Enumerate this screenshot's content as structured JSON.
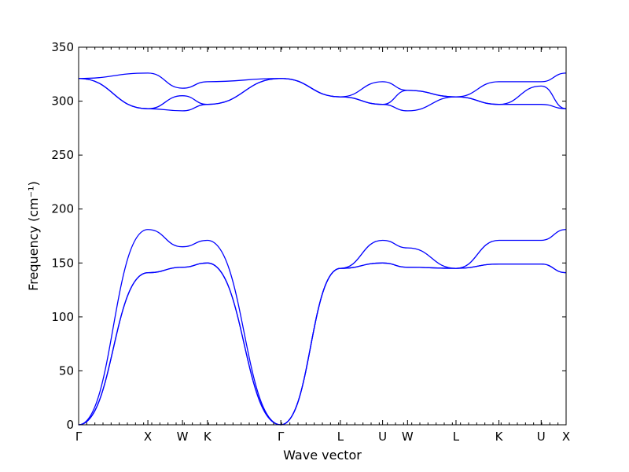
{
  "chart_data": {
    "type": "line",
    "title": "",
    "xlabel": "Wave vector",
    "ylabel": "Frequency (cm⁻¹)",
    "ylim": [
      0,
      350
    ],
    "yticks": [
      0,
      50,
      100,
      150,
      200,
      250,
      300,
      350
    ],
    "grid": false,
    "legend": "none",
    "line_color": "#0000ff",
    "x": [
      0,
      1,
      1.5,
      1.86,
      2.92,
      3.78,
      4.39,
      4.75,
      5.45,
      6.07,
      6.68,
      7.04
    ],
    "xticks": [
      "Γ",
      "X",
      "W",
      "K",
      "Γ",
      "L",
      "U",
      "W",
      "L",
      "K",
      "U",
      "X"
    ],
    "series": [
      {
        "values": [
          0,
          141,
          146,
          150,
          0,
          145,
          150,
          146,
          145,
          149,
          149,
          141
        ]
      },
      {
        "values": [
          0,
          141,
          146,
          150,
          0,
          145,
          150,
          146,
          145,
          149,
          149,
          141
        ]
      },
      {
        "values": [
          0,
          181,
          165,
          171,
          0,
          145,
          171,
          164,
          145,
          171,
          171,
          181
        ]
      },
      {
        "values": [
          321,
          293,
          291,
          297,
          321,
          304,
          297,
          291,
          304,
          297,
          297,
          293
        ]
      },
      {
        "values": [
          321,
          293,
          305,
          297,
          321,
          304,
          297,
          310,
          304,
          297,
          314,
          293
        ]
      },
      {
        "values": [
          321,
          326,
          312,
          318,
          321,
          304,
          318,
          310,
          304,
          318,
          318,
          326
        ]
      }
    ]
  }
}
